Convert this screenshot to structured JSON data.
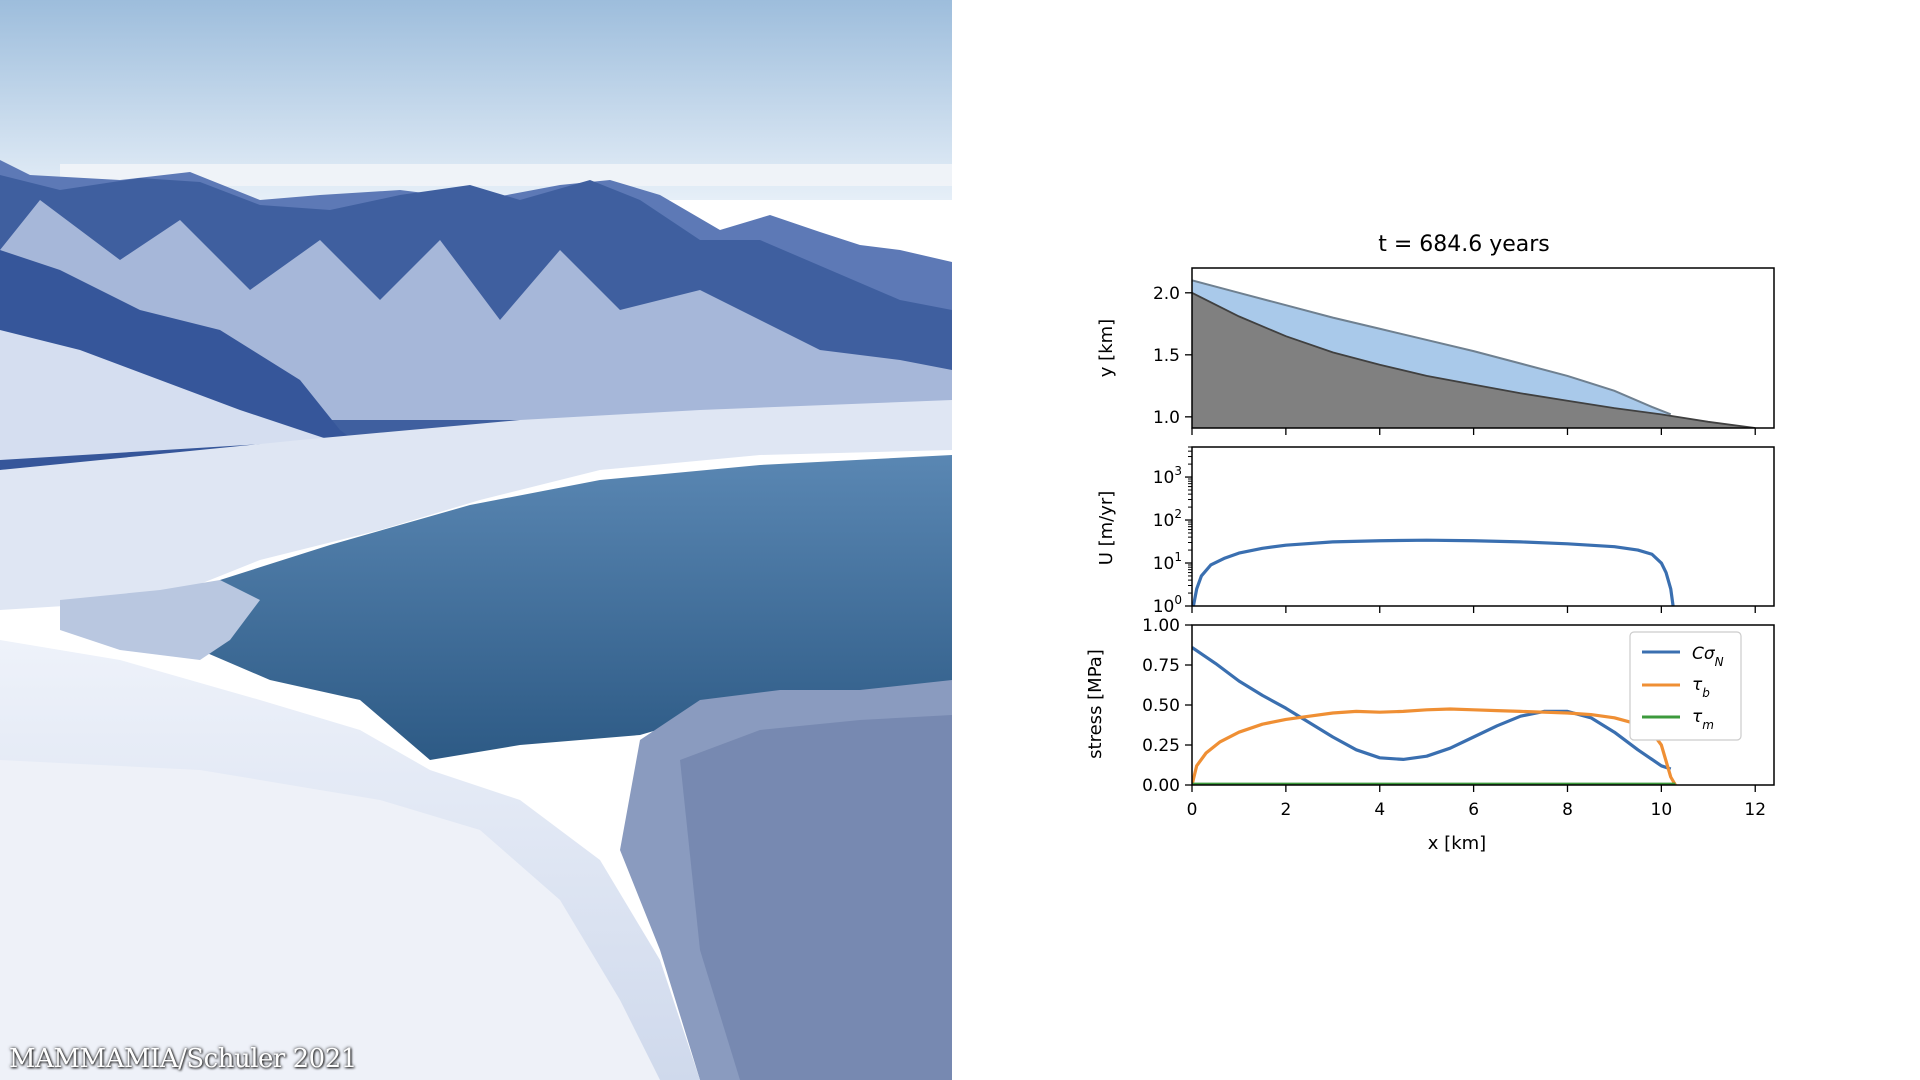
{
  "photo": {
    "credit": "MAMMAMIA/Schuler 2021",
    "colors": {
      "sky_top": "#a8c4e0",
      "sky_bottom": "#e4eef7",
      "mountain": "#3c5a9e",
      "snow": "#e8eef8",
      "water": "#3f6d97"
    }
  },
  "chart_data": [
    {
      "type": "area",
      "title": "t = 684.6 years",
      "xlabel": "",
      "ylabel": "y [km]",
      "xlim": [
        0,
        12.4
      ],
      "ylim": [
        0.91,
        2.2
      ],
      "yticks": [
        "1.0",
        "1.5",
        "2.0"
      ],
      "xticks": [
        0,
        2,
        4,
        6,
        8,
        10,
        12
      ],
      "series": [
        {
          "role": "ice-surface",
          "color": "#a9c9ea",
          "x": [
            0,
            1,
            2,
            3,
            4,
            5,
            6,
            7,
            8,
            9,
            9.8,
            10.2
          ],
          "y": [
            2.1,
            2.0,
            1.9,
            1.8,
            1.71,
            1.62,
            1.53,
            1.43,
            1.33,
            1.21,
            1.08,
            1.02
          ]
        },
        {
          "role": "bed",
          "color": "#808080",
          "x": [
            0,
            1,
            2,
            3,
            4,
            5,
            6,
            7,
            8,
            9,
            10,
            11,
            12
          ],
          "y": [
            2.0,
            1.81,
            1.65,
            1.52,
            1.42,
            1.33,
            1.26,
            1.19,
            1.13,
            1.07,
            1.02,
            0.96,
            0.91
          ]
        }
      ]
    },
    {
      "type": "line",
      "ylabel": "U [m/yr]",
      "yscale": "log",
      "xlim": [
        0,
        12.4
      ],
      "ylim": [
        1,
        5000
      ],
      "yticks": [
        {
          "base": "10",
          "exp": "0",
          "value": 1
        },
        {
          "base": "10",
          "exp": "1",
          "value": 10
        },
        {
          "base": "10",
          "exp": "2",
          "value": 100
        },
        {
          "base": "10",
          "exp": "3",
          "value": 1000
        }
      ],
      "xticks": [
        0,
        2,
        4,
        6,
        8,
        10,
        12
      ],
      "series": [
        {
          "color": "#3a6fb0",
          "x": [
            0.03,
            0.1,
            0.2,
            0.4,
            0.7,
            1,
            1.5,
            2,
            3,
            4,
            5,
            6,
            7,
            8,
            9,
            9.5,
            9.8,
            10,
            10.1,
            10.2,
            10.25
          ],
          "y": [
            1,
            2.5,
            5,
            9,
            13,
            17,
            22,
            26,
            31,
            33,
            34,
            33,
            31,
            28,
            24,
            20,
            16,
            10,
            6,
            2.5,
            1
          ]
        }
      ]
    },
    {
      "type": "line",
      "ylabel": "stress [MPa]",
      "xlabel": "x [km]",
      "xlim": [
        0,
        12.4
      ],
      "ylim": [
        0,
        1.0
      ],
      "yticks": [
        "0.00",
        "0.25",
        "0.50",
        "0.75",
        "1.00"
      ],
      "xticks": [
        "0",
        "2",
        "4",
        "6",
        "8",
        "10",
        "12"
      ],
      "legend_position": "upper right",
      "series": [
        {
          "name": "Cσ",
          "sub": "N",
          "color": "#3a6fb0",
          "x": [
            0,
            0.5,
            1,
            1.5,
            2,
            2.5,
            3,
            3.5,
            4,
            4.5,
            5,
            5.5,
            6,
            6.5,
            7,
            7.5,
            8,
            8.5,
            9,
            9.5,
            10,
            10.2
          ],
          "y": [
            0.86,
            0.76,
            0.65,
            0.56,
            0.48,
            0.39,
            0.3,
            0.22,
            0.17,
            0.16,
            0.18,
            0.23,
            0.3,
            0.37,
            0.43,
            0.46,
            0.46,
            0.42,
            0.33,
            0.22,
            0.12,
            0.1
          ]
        },
        {
          "name": "τ",
          "sub": "b",
          "color": "#ef8f34",
          "x": [
            0,
            0.1,
            0.3,
            0.6,
            1,
            1.5,
            2,
            2.5,
            3,
            3.5,
            4,
            4.5,
            5,
            5.5,
            6,
            6.5,
            7,
            7.5,
            8,
            8.5,
            9,
            9.5,
            9.8,
            10,
            10.1,
            10.2,
            10.3
          ],
          "y": [
            0.0,
            0.12,
            0.2,
            0.27,
            0.33,
            0.38,
            0.41,
            0.43,
            0.45,
            0.46,
            0.455,
            0.46,
            0.47,
            0.475,
            0.47,
            0.465,
            0.46,
            0.455,
            0.45,
            0.44,
            0.42,
            0.38,
            0.33,
            0.25,
            0.15,
            0.05,
            0.0
          ]
        },
        {
          "name": "τ",
          "sub": "m",
          "color": "#3c9a3c",
          "x": [
            0,
            10.3
          ],
          "y": [
            0.005,
            0.005
          ]
        }
      ]
    }
  ]
}
